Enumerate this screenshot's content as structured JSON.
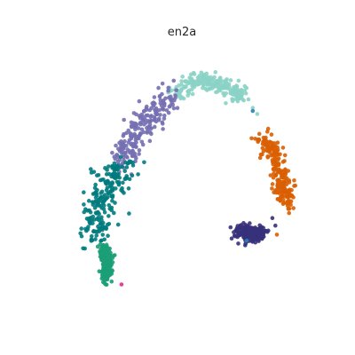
{
  "chart_data": {
    "type": "scatter",
    "title": "en2a",
    "xlabel": "",
    "ylabel": "",
    "axes_visible": false,
    "grid": false,
    "legend": "none",
    "xlim": [
      0,
      10
    ],
    "ylim": [
      0,
      10
    ],
    "series": [
      {
        "color": "#8ad3c5",
        "path": [
          [
            4.6,
            8.1
          ],
          [
            5.5,
            8.55
          ],
          [
            6.2,
            8.35
          ],
          [
            6.9,
            8.0
          ]
        ],
        "spread": 0.28,
        "values": [
          [
            6.9,
            7.85
          ],
          [
            7.2,
            7.6
          ],
          [
            7.35,
            7.4
          ]
        ]
      },
      {
        "color": "#7570b3",
        "path": [
          [
            2.7,
            5.6
          ],
          [
            3.2,
            6.6
          ],
          [
            3.8,
            7.4
          ],
          [
            4.6,
            7.95
          ]
        ],
        "spread": 0.42
      },
      {
        "color": "#007b7d",
        "path": [
          [
            1.9,
            3.2
          ],
          [
            2.0,
            3.8
          ],
          [
            2.1,
            4.5
          ],
          [
            2.5,
            5.1
          ],
          [
            2.9,
            5.7
          ]
        ],
        "spread": 0.45,
        "values": [
          [
            3.4,
            5.4
          ],
          [
            3.6,
            5.8
          ],
          [
            3.1,
            4.1
          ],
          [
            1.6,
            4.4
          ],
          [
            6.7,
            3.6
          ]
        ]
      },
      {
        "color": "#1b9e77",
        "path": [
          [
            2.3,
            1.9
          ],
          [
            2.4,
            2.5
          ],
          [
            2.2,
            3.0
          ]
        ],
        "spread": 0.18
      },
      {
        "color": "#d95f02",
        "path": [
          [
            7.4,
            6.6
          ],
          [
            7.9,
            6.1
          ],
          [
            8.2,
            5.2
          ],
          [
            8.35,
            4.3
          ]
        ],
        "spread": 0.28,
        "values": [
          [
            7.9,
            4.8
          ],
          [
            8.0,
            3.4
          ]
        ]
      },
      {
        "color": "#37317a",
        "path": [
          [
            6.8,
            3.5
          ],
          [
            7.2,
            3.4
          ],
          [
            7.45,
            3.45
          ]
        ],
        "spread": 0.25,
        "values": [
          [
            7.95,
            3.7
          ],
          [
            7.85,
            3.95
          ]
        ]
      },
      {
        "color": "#e7298a",
        "values": [
          [
            2.85,
            1.75
          ]
        ]
      },
      {
        "color": "#2c7fb8",
        "values": [
          [
            7.2,
            7.5
          ],
          [
            7.0,
            3.2
          ]
        ]
      }
    ]
  }
}
